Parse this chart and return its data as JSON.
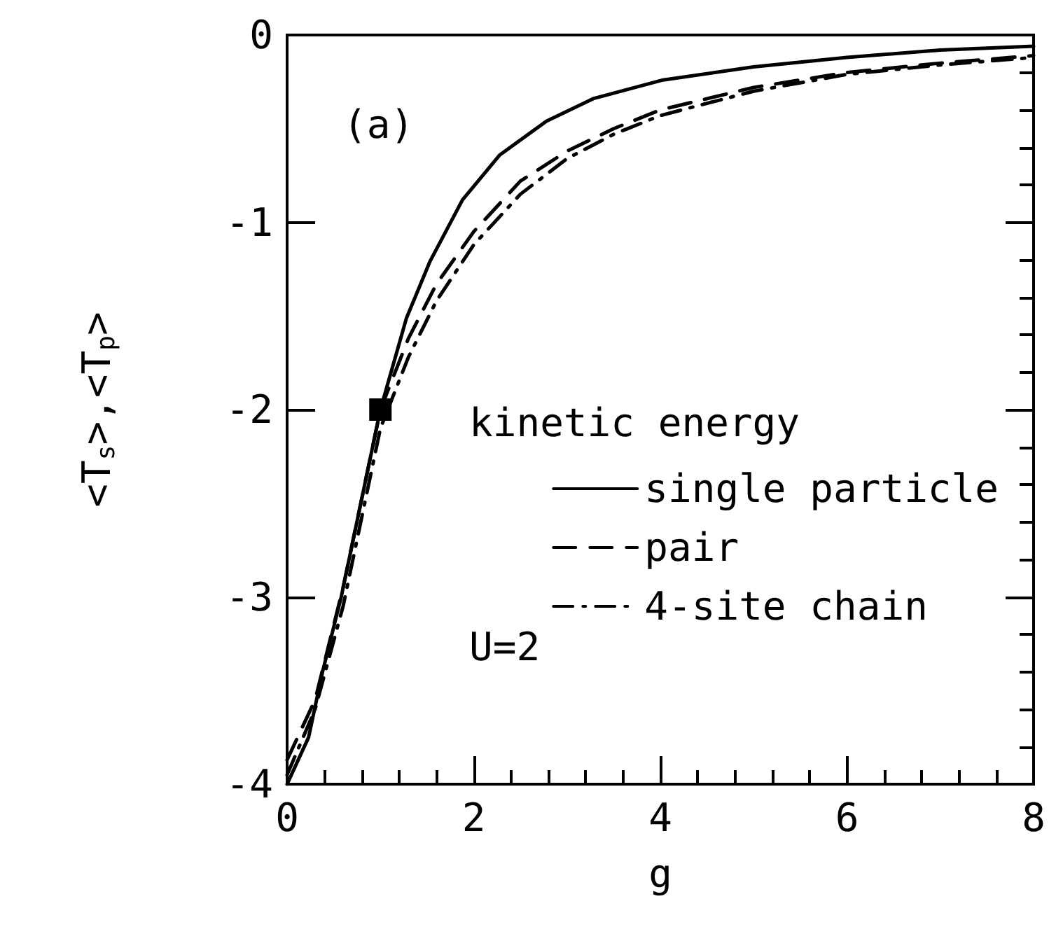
{
  "chart_data": {
    "type": "line",
    "xlabel": "g",
    "ylabel": "<T$_{s}$>,<T$_{p}$>",
    "legend_title": "kinetic energy",
    "xlim": [
      0,
      8
    ],
    "xticks": [
      0,
      2,
      4,
      6,
      8
    ],
    "ylim": [
      -4,
      0
    ],
    "yticks": [
      -4,
      -3,
      -2,
      -1,
      0
    ],
    "grid": false,
    "legend": "right",
    "annotations": [
      "(a)",
      "U=2"
    ],
    "series": [
      {
        "name": "single particle",
        "color": "#000000",
        "line_style": "solid",
        "x": [
          0,
          0.23,
          0.38,
          0.58,
          1.0,
          1.28,
          1.53,
          1.88,
          2.28,
          2.78,
          3.28,
          4.03,
          5,
          6,
          7,
          8
        ],
        "values": [
          -4,
          -3.75,
          -3.4,
          -3.0,
          -2.0,
          -1.51,
          -1.21,
          -0.88,
          -0.64,
          -0.46,
          -0.34,
          -0.24,
          -0.17,
          -0.12,
          -0.08,
          -0.06
        ]
      },
      {
        "name": "pair",
        "color": "#000000",
        "line_style": "dashed",
        "x": [
          0,
          0.3,
          0.6,
          1.0,
          1.3,
          1.6,
          2.0,
          2.5,
          3,
          3.5,
          4,
          5,
          6,
          7,
          8
        ],
        "values": [
          -3.87,
          -3.55,
          -2.95,
          -2.0,
          -1.62,
          -1.33,
          -1.05,
          -0.78,
          -0.62,
          -0.5,
          -0.4,
          -0.28,
          -0.2,
          -0.15,
          -0.11
        ]
      },
      {
        "name": "4-site chain",
        "color": "#000000",
        "line_style": "dashdot",
        "x": [
          0,
          0.3,
          0.6,
          1.0,
          1.3,
          1.6,
          2.0,
          2.5,
          3,
          3.5,
          4,
          5,
          6,
          7,
          8
        ],
        "values": [
          -3.95,
          -3.6,
          -3.05,
          -2.1,
          -1.72,
          -1.42,
          -1.12,
          -0.85,
          -0.66,
          -0.53,
          -0.43,
          -0.3,
          -0.21,
          -0.16,
          -0.12
        ]
      },
      {
        "type": "scatter",
        "marker": "square",
        "color": "#000000",
        "x": [
          1
        ],
        "values": [
          -2
        ]
      }
    ]
  }
}
